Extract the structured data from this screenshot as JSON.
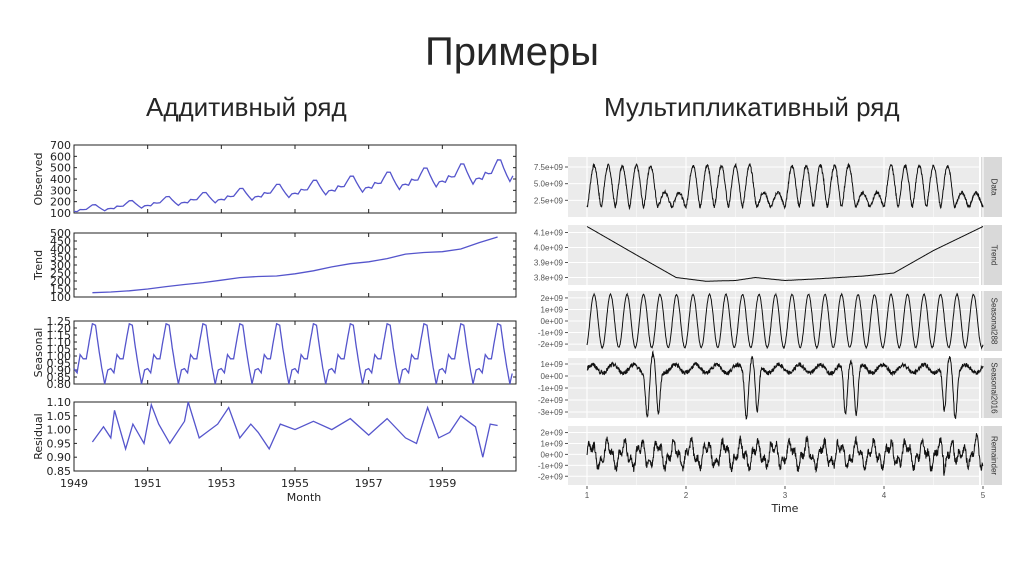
{
  "slide": {
    "title": "Примеры",
    "left_heading": "Аддитивный ряд",
    "right_heading": "Мультипликативный ряд"
  },
  "chart_data": [
    {
      "type": "line",
      "title": "Аддитивный ряд",
      "xlabel": "Month",
      "x_ticks": [
        "1949",
        "1951",
        "1953",
        "1955",
        "1957",
        "1959"
      ],
      "xlim": [
        1949,
        1961
      ],
      "line_color": "#5555cc",
      "panels": [
        {
          "name": "Observed",
          "ylim": [
            100,
            700
          ],
          "y_ticks": [
            "100",
            "200",
            "300",
            "400",
            "500",
            "600",
            "700"
          ],
          "x": [
            1949,
            1949.5,
            1950,
            1950.5,
            1951,
            1951.5,
            1952,
            1952.5,
            1953,
            1953.5,
            1954,
            1954.5,
            1955,
            1955.5,
            1956,
            1956.5,
            1957,
            1957.5,
            1958,
            1958.5,
            1959,
            1959.5,
            1960,
            1960.5,
            1960.9
          ],
          "values": [
            112,
            148,
            118,
            170,
            145,
            199,
            171,
            242,
            196,
            264,
            204,
            302,
            242,
            364,
            278,
            413,
            315,
            465,
            340,
            505,
            360,
            559,
            390,
            622,
            432
          ]
        },
        {
          "name": "Trend",
          "ylim": [
            100,
            500
          ],
          "y_ticks": [
            "100",
            "150",
            "200",
            "250",
            "300",
            "350",
            "400",
            "450",
            "500"
          ],
          "x": [
            1949.5,
            1950,
            1950.5,
            1951,
            1951.5,
            1952,
            1952.5,
            1953,
            1953.5,
            1954,
            1954.5,
            1955,
            1955.5,
            1956,
            1956.5,
            1957,
            1957.5,
            1958,
            1958.5,
            1959,
            1959.5,
            1960,
            1960.5
          ],
          "values": [
            127,
            131,
            139,
            150,
            165,
            178,
            190,
            205,
            221,
            228,
            231,
            245,
            264,
            288,
            308,
            320,
            340,
            368,
            378,
            383,
            400,
            440,
            475
          ]
        },
        {
          "name": "Seasonal",
          "ylim": [
            0.8,
            1.25
          ],
          "y_ticks": [
            "0.80",
            "0.85",
            "0.90",
            "0.95",
            "1.00",
            "1.05",
            "1.10",
            "1.15",
            "1.20",
            "1.25"
          ],
          "pattern_month": [
            0.91,
            0.88,
            1.01,
            0.98,
            0.98,
            1.11,
            1.23,
            1.22,
            1.06,
            0.92,
            0.8,
            0.9
          ],
          "values": []
        },
        {
          "name": "Residual",
          "ylim": [
            0.85,
            1.1
          ],
          "y_ticks": [
            "0.85",
            "0.90",
            "0.95",
            "1.00",
            "1.05",
            "1.10"
          ],
          "x": [
            1949.5,
            1949.8,
            1950,
            1950.1,
            1950.4,
            1950.6,
            1950.9,
            1951.1,
            1951.3,
            1951.6,
            1952,
            1952.1,
            1952.4,
            1952.6,
            1952.9,
            1953.2,
            1953.5,
            1953.8,
            1954,
            1954.3,
            1954.6,
            1955,
            1955.5,
            1956,
            1956.5,
            1957,
            1957.5,
            1958,
            1958.3,
            1958.6,
            1958.9,
            1959.2,
            1959.5,
            1959.9,
            1960.1,
            1960.3,
            1960.5
          ],
          "values": [
            0.955,
            1.01,
            0.97,
            1.07,
            0.93,
            1.02,
            0.95,
            1.09,
            1.02,
            0.95,
            1.03,
            1.1,
            0.97,
            0.99,
            1.02,
            1.08,
            0.97,
            1.02,
            0.99,
            0.93,
            1.02,
            1.0,
            1.03,
            1.0,
            1.04,
            0.98,
            1.04,
            0.97,
            0.95,
            1.08,
            0.97,
            0.99,
            1.05,
            1.01,
            0.9,
            1.02,
            1.015
          ]
        }
      ]
    },
    {
      "type": "line",
      "title": "Мультипликативный ряд",
      "xlabel": "Time",
      "x_ticks": [
        "1",
        "2",
        "3",
        "4",
        "5"
      ],
      "xlim": [
        1,
        5
      ],
      "line_color": "#111111",
      "background": "#ebebeb",
      "panels": [
        {
          "name": "Data",
          "y_ticks": [
            "2.5e+09",
            "5.0e+09",
            "7.5e+09"
          ],
          "ylim": [
            0,
            9000000000.0
          ]
        },
        {
          "name": "Trend",
          "y_ticks": [
            "3.8e+09",
            "3.9e+09",
            "4.0e+09",
            "4.1e+09"
          ],
          "ylim": [
            3750000000.0,
            4150000000.0
          ],
          "x": [
            1,
            1.5,
            1.9,
            2.2,
            2.5,
            2.7,
            3.0,
            3.3,
            3.8,
            4.1,
            4.5,
            5
          ],
          "values": [
            4140000000.0,
            3950000000.0,
            3800000000.0,
            3775000000.0,
            3780000000.0,
            3800000000.0,
            3780000000.0,
            3790000000.0,
            3810000000.0,
            3830000000.0,
            3980000000.0,
            4140000000.0
          ]
        },
        {
          "name": "Seasonal288",
          "y_ticks": [
            "-2e+09",
            "-1e+09",
            "0e+00",
            "1e+09",
            "2e+09"
          ],
          "ylim": [
            -2600000000.0,
            2600000000.0
          ],
          "cycles": 24
        },
        {
          "name": "Seasonal2016",
          "y_ticks": [
            "-3e+09",
            "-2e+09",
            "-1e+09",
            "0e+00",
            "1e+09"
          ],
          "ylim": [
            -3500000000.0,
            1500000000.0
          ]
        },
        {
          "name": "Remainder",
          "y_ticks": [
            "-2e+09",
            "-1e+09",
            "0e+00",
            "1e+09",
            "2e+09"
          ],
          "ylim": [
            -2800000000.0,
            2600000000.0
          ]
        }
      ]
    }
  ]
}
